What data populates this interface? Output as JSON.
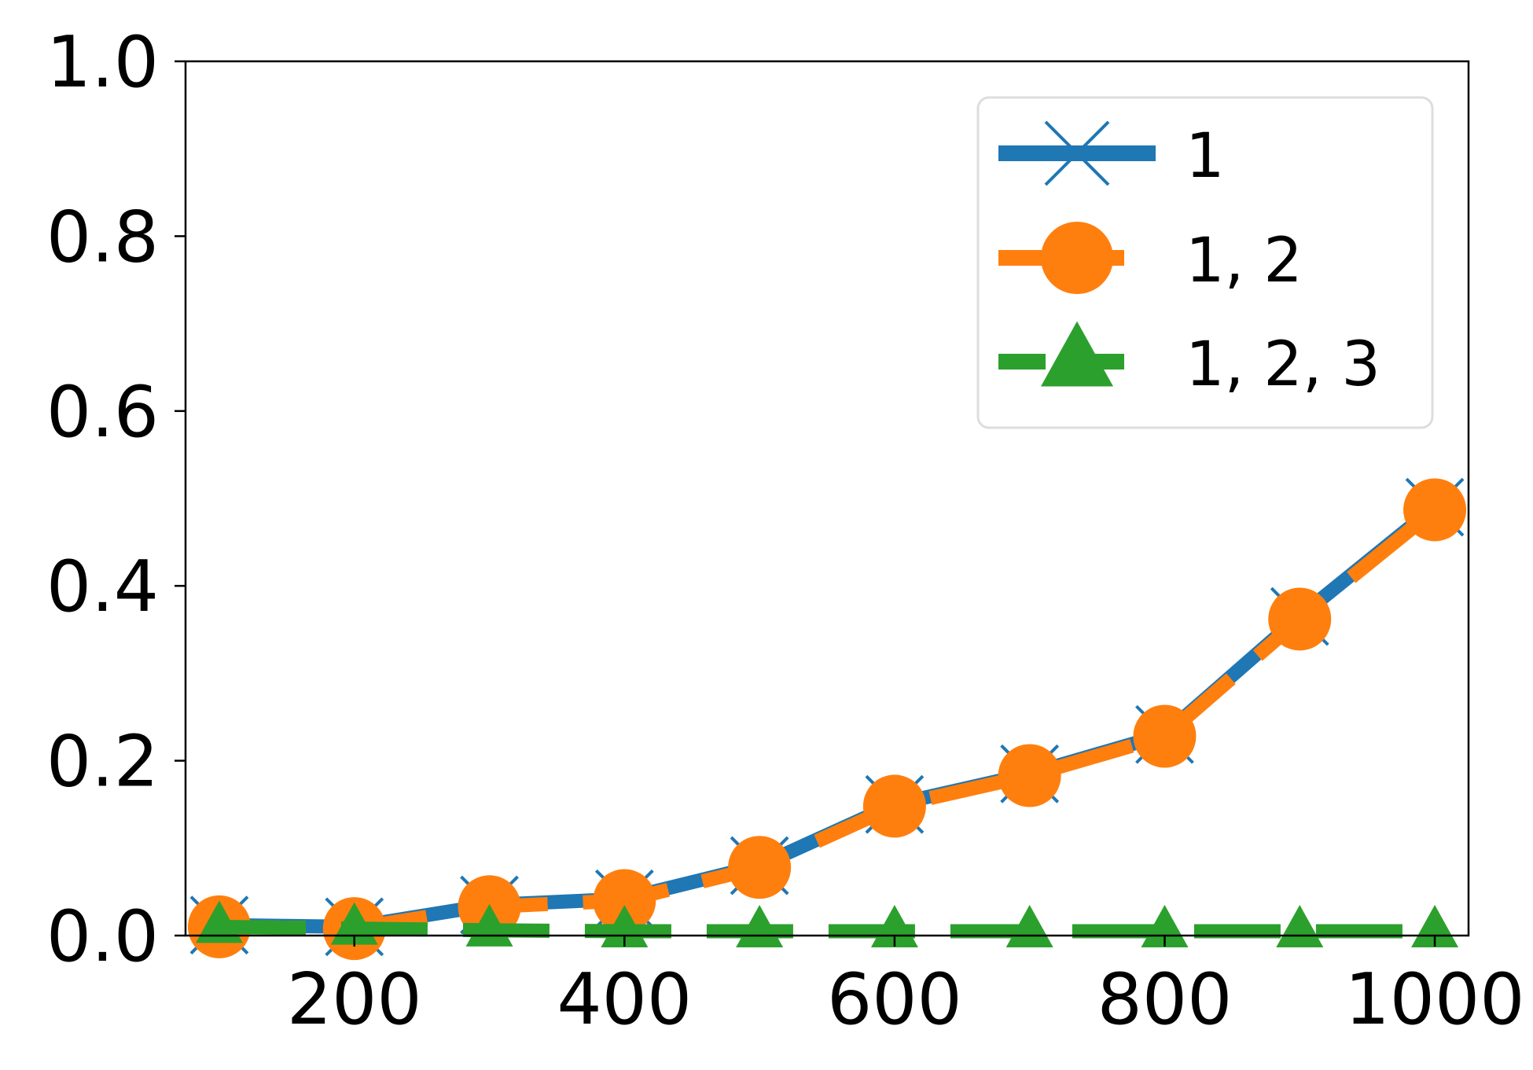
{
  "chart_data": {
    "type": "line",
    "title": "",
    "xlabel": "",
    "ylabel": "",
    "xlim": [
      75,
      1025
    ],
    "ylim": [
      0,
      1.0
    ],
    "x": [
      100,
      200,
      300,
      400,
      500,
      600,
      700,
      800,
      900,
      1000
    ],
    "xticks": [
      200,
      400,
      600,
      800,
      1000
    ],
    "yticks": [
      0.0,
      0.2,
      0.4,
      0.6,
      0.8,
      1.0
    ],
    "xtick_labels": [
      "200",
      "400",
      "600",
      "800",
      "1000"
    ],
    "ytick_labels": [
      "0.0",
      "0.2",
      "0.4",
      "0.6",
      "0.8",
      "1.0"
    ],
    "grid": false,
    "legend_position": "top-right",
    "series": [
      {
        "name": "1",
        "color": "#1f77b4",
        "marker": "x",
        "linestyle": "solid",
        "values": [
          0.012,
          0.01,
          0.035,
          0.042,
          0.08,
          0.15,
          0.185,
          0.23,
          0.365,
          0.49
        ]
      },
      {
        "name": "1, 2",
        "color": "#ff7f0e",
        "marker": "circle",
        "linestyle": "dashed",
        "values": [
          0.01,
          0.008,
          0.033,
          0.04,
          0.078,
          0.148,
          0.183,
          0.228,
          0.362,
          0.487
        ]
      },
      {
        "name": "1, 2, 3",
        "color": "#2ca02c",
        "marker": "triangle",
        "linestyle": "dashed",
        "values": [
          0.01,
          0.008,
          0.006,
          0.005,
          0.005,
          0.005,
          0.005,
          0.005,
          0.005,
          0.005
        ]
      }
    ]
  }
}
